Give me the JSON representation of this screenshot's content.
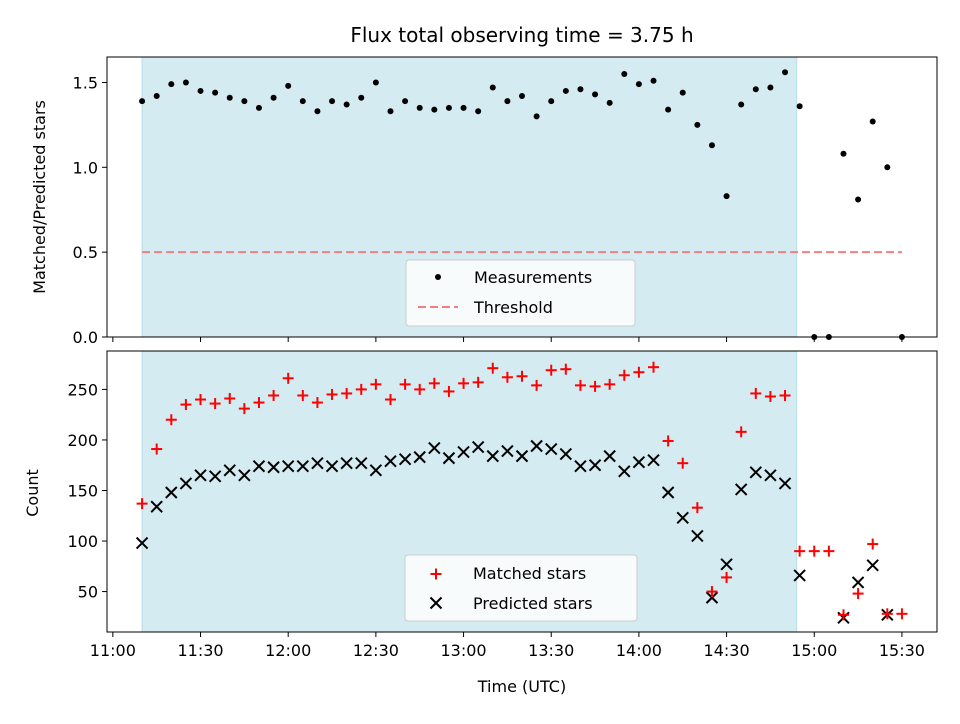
{
  "chart_data": {
    "title": "Flux total observing time = 3.75 h",
    "xlabel": "Time (UTC)",
    "x_tick_labels": [
      "11:00",
      "11:30",
      "12:00",
      "12:30",
      "13:00",
      "13:30",
      "14:00",
      "14:30",
      "15:00",
      "15:30"
    ],
    "x_tick_minutes": [
      660,
      690,
      720,
      750,
      780,
      810,
      840,
      870,
      900,
      930
    ],
    "xlim_minutes": [
      658,
      942
    ],
    "shaded_span_minutes": [
      670,
      894
    ],
    "shade_color": "#d4ebf1",
    "top": {
      "type": "scatter",
      "ylabel": "Matched/Predicted stars",
      "ylim": [
        0,
        1.65
      ],
      "y_ticks": [
        0.0,
        0.5,
        1.0,
        1.5
      ],
      "y_tick_labels": [
        "0.0",
        "0.5",
        "1.0",
        "1.5"
      ],
      "threshold": {
        "name": "Threshold",
        "value": 0.5,
        "x_range": [
          670,
          930
        ],
        "color": "#f08080"
      },
      "legend": {
        "measurements": "Measurements",
        "threshold": "Threshold"
      },
      "measurements": {
        "name": "Measurements",
        "color": "#000000",
        "x": [
          670,
          675,
          680,
          685,
          690,
          695,
          700,
          705,
          710,
          715,
          720,
          725,
          730,
          735,
          740,
          745,
          750,
          755,
          760,
          765,
          770,
          775,
          780,
          785,
          790,
          795,
          800,
          805,
          810,
          815,
          820,
          825,
          830,
          835,
          840,
          845,
          850,
          855,
          860,
          865,
          870,
          875,
          880,
          885,
          890,
          895,
          900,
          905,
          910,
          915,
          920,
          925,
          930
        ],
        "y": [
          1.39,
          1.42,
          1.49,
          1.5,
          1.45,
          1.44,
          1.41,
          1.39,
          1.35,
          1.41,
          1.48,
          1.39,
          1.33,
          1.39,
          1.37,
          1.41,
          1.5,
          1.33,
          1.39,
          1.35,
          1.34,
          1.35,
          1.35,
          1.33,
          1.47,
          1.39,
          1.42,
          1.3,
          1.39,
          1.45,
          1.46,
          1.43,
          1.38,
          1.55,
          1.49,
          1.51,
          1.34,
          1.44,
          1.25,
          1.13,
          0.83,
          1.37,
          1.46,
          1.47,
          1.56,
          1.36,
          0.0,
          0.0,
          1.08,
          0.81,
          1.27,
          1.0,
          0.0
        ]
      }
    },
    "bottom": {
      "type": "scatter",
      "ylabel": "Count",
      "ylim": [
        10,
        288
      ],
      "y_ticks": [
        50,
        100,
        150,
        200,
        250
      ],
      "y_tick_labels": [
        "50",
        "100",
        "150",
        "200",
        "250"
      ],
      "legend": {
        "matched": "Matched stars",
        "predicted": "Predicted stars"
      },
      "matched": {
        "name": "Matched stars",
        "color": "#ff0000",
        "x": [
          670,
          675,
          680,
          685,
          690,
          695,
          700,
          705,
          710,
          715,
          720,
          725,
          730,
          735,
          740,
          745,
          750,
          755,
          760,
          765,
          770,
          775,
          780,
          785,
          790,
          795,
          800,
          805,
          810,
          815,
          820,
          825,
          830,
          835,
          840,
          845,
          850,
          855,
          860,
          865,
          870,
          875,
          880,
          885,
          890,
          895,
          900,
          905,
          910,
          915,
          920,
          925,
          930
        ],
        "y": [
          137,
          191,
          220,
          235,
          240,
          236,
          241,
          231,
          237,
          244,
          261,
          244,
          237,
          245,
          246,
          250,
          255,
          240,
          255,
          250,
          256,
          248,
          256,
          257,
          271,
          262,
          263,
          254,
          269,
          270,
          254,
          253,
          255,
          264,
          267,
          272,
          199,
          177,
          133,
          50,
          64,
          208,
          246,
          243,
          244,
          90,
          90,
          90,
          27,
          48,
          97,
          28,
          28
        ]
      },
      "predicted": {
        "name": "Predicted stars",
        "color": "#000000",
        "x": [
          670,
          675,
          680,
          685,
          690,
          695,
          700,
          705,
          710,
          715,
          720,
          725,
          730,
          735,
          740,
          745,
          750,
          755,
          760,
          765,
          770,
          775,
          780,
          785,
          790,
          795,
          800,
          805,
          810,
          815,
          820,
          825,
          830,
          835,
          840,
          845,
          850,
          855,
          860,
          865,
          870,
          875,
          880,
          885,
          890,
          895,
          910,
          915,
          920,
          925
        ],
        "y": [
          98,
          134,
          148,
          157,
          165,
          164,
          170,
          165,
          174,
          173,
          174,
          174,
          177,
          174,
          177,
          177,
          170,
          179,
          181,
          183,
          192,
          182,
          188,
          193,
          184,
          189,
          184,
          194,
          191,
          186,
          174,
          175,
          184,
          169,
          178,
          180,
          148,
          123,
          105,
          44,
          77,
          151,
          168,
          165,
          157,
          66,
          24,
          59,
          76,
          27
        ]
      }
    }
  }
}
